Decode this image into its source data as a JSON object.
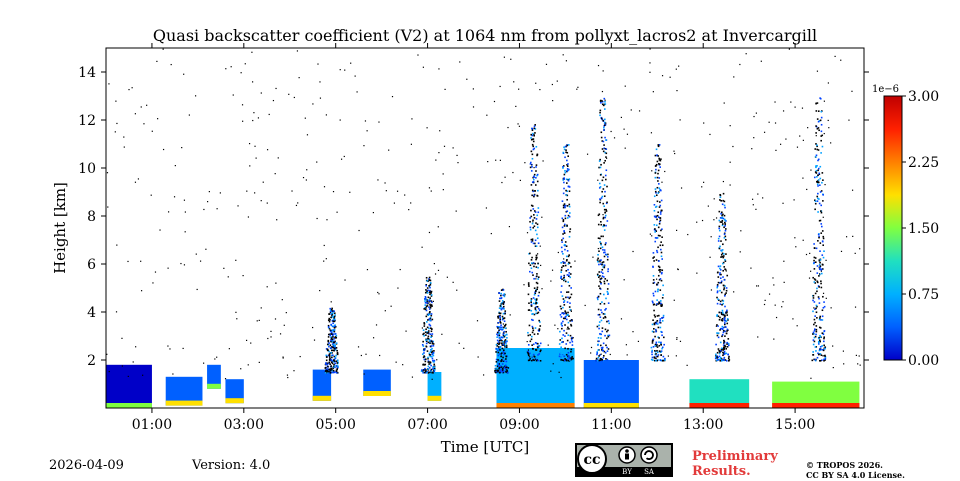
{
  "chart_data": {
    "type": "heatmap",
    "title": "Quasi backscatter coefficient (V2) at 1064 nm from pollyxt_lacros2 at Invercargill",
    "xlabel": "Time [UTC]",
    "ylabel": "Height [km]",
    "xlim_hours": [
      -0.0,
      16.5
    ],
    "ylim_km": [
      0,
      15
    ],
    "xticks": [
      {
        "value": 1,
        "label": "01:00"
      },
      {
        "value": 3,
        "label": "03:00"
      },
      {
        "value": 5,
        "label": "05:00"
      },
      {
        "value": 7,
        "label": "07:00"
      },
      {
        "value": 9,
        "label": "09:00"
      },
      {
        "value": 11,
        "label": "11:00"
      },
      {
        "value": 13,
        "label": "13:00"
      },
      {
        "value": 15,
        "label": "15:00"
      }
    ],
    "yticks": [
      {
        "value": 2,
        "label": "2"
      },
      {
        "value": 4,
        "label": "4"
      },
      {
        "value": 6,
        "label": "6"
      },
      {
        "value": 8,
        "label": "8"
      },
      {
        "value": 10,
        "label": "10"
      },
      {
        "value": 12,
        "label": "12"
      },
      {
        "value": 14,
        "label": "14"
      }
    ],
    "colorbar": {
      "exponent_label": "1e−6",
      "min": 0.0,
      "max": 3.0,
      "ticks": [
        {
          "value": 0.0,
          "label": "0.00"
        },
        {
          "value": 0.75,
          "label": "0.75"
        },
        {
          "value": 1.5,
          "label": "1.50"
        },
        {
          "value": 2.25,
          "label": "2.25"
        },
        {
          "value": 3.0,
          "label": "3.00"
        }
      ],
      "colormap": [
        "#0000c8",
        "#0060ff",
        "#00b0ff",
        "#20e0c0",
        "#80ff40",
        "#ffe000",
        "#ff8000",
        "#ff2000",
        "#c00000"
      ]
    },
    "layers": [
      {
        "t0": 0.0,
        "t1": 1.0,
        "h0": 0.0,
        "h1": 1.8,
        "value": 0.15
      },
      {
        "t0": 1.3,
        "t1": 2.1,
        "h0": 0.1,
        "h1": 1.3,
        "value": 0.3
      },
      {
        "t0": 2.2,
        "t1": 2.5,
        "h0": 0.8,
        "h1": 1.8,
        "value": 0.2
      },
      {
        "t0": 2.6,
        "t1": 3.0,
        "h0": 0.2,
        "h1": 1.2,
        "value": 0.35
      },
      {
        "t0": 4.5,
        "t1": 4.9,
        "h0": 0.3,
        "h1": 1.6,
        "value": 0.3
      },
      {
        "t0": 5.6,
        "t1": 6.2,
        "h0": 0.5,
        "h1": 1.6,
        "value": 0.35
      },
      {
        "t0": 7.0,
        "t1": 7.3,
        "h0": 0.3,
        "h1": 1.5,
        "value": 0.6
      },
      {
        "t0": 8.5,
        "t1": 10.2,
        "h0": 0.0,
        "h1": 2.5,
        "value": 0.9
      },
      {
        "t0": 10.4,
        "t1": 11.6,
        "h0": 0.0,
        "h1": 2.0,
        "value": 0.4
      },
      {
        "t0": 12.7,
        "t1": 14.0,
        "h0": 0.0,
        "h1": 1.2,
        "value": 1.1
      },
      {
        "t0": 14.5,
        "t1": 16.4,
        "h0": 0.0,
        "h1": 1.1,
        "value": 1.4
      }
    ],
    "plumes": [
      {
        "t": 4.9,
        "h0": 1.5,
        "h1": 4.2,
        "value": 0.05
      },
      {
        "t": 7.0,
        "h0": 1.5,
        "h1": 5.5,
        "value": 0.05
      },
      {
        "t": 8.6,
        "h0": 1.5,
        "h1": 5.0,
        "value": 0.05
      },
      {
        "t": 9.3,
        "h0": 2.0,
        "h1": 12.0,
        "value": 0.05
      },
      {
        "t": 10.0,
        "h0": 2.0,
        "h1": 11.0,
        "value": 0.05
      },
      {
        "t": 10.8,
        "h0": 2.0,
        "h1": 13.0,
        "value": 0.05
      },
      {
        "t": 12.0,
        "h0": 2.0,
        "h1": 11.0,
        "value": 0.05
      },
      {
        "t": 13.4,
        "h0": 2.0,
        "h1": 9.0,
        "value": 0.05
      },
      {
        "t": 15.5,
        "h0": 2.0,
        "h1": 13.0,
        "value": 0.05
      }
    ]
  },
  "footer": {
    "date": "2026-04-09",
    "version": "Version: 4.0",
    "preliminary": [
      "Preliminary",
      "Results."
    ],
    "copyright": [
      "© TROPOS 2026.",
      "CC BY SA 4.0 License."
    ],
    "cc_badge": {
      "by": "BY",
      "sa": "SA"
    }
  }
}
